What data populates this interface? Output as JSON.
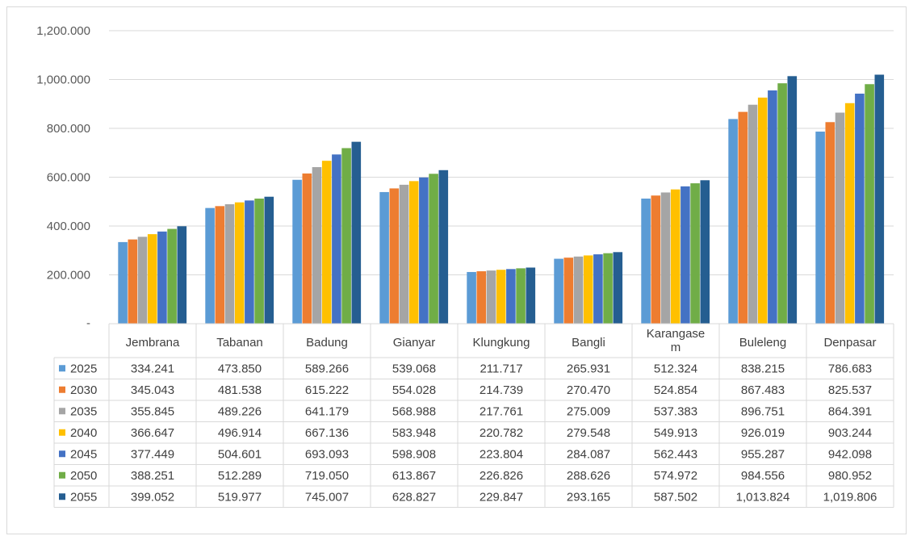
{
  "chart_data": {
    "type": "bar",
    "title": "",
    "xlabel": "",
    "ylabel": "",
    "ylim": [
      0,
      1200
    ],
    "y_ticks": [
      {
        "value": 0,
        "label": "-"
      },
      {
        "value": 200,
        "label": "200.000"
      },
      {
        "value": 400,
        "label": "400.000"
      },
      {
        "value": 600,
        "label": "600.000"
      },
      {
        "value": 800,
        "label": "800.000"
      },
      {
        "value": 1000,
        "label": "1,000.000"
      },
      {
        "value": 1200,
        "label": "1,200.000"
      }
    ],
    "grid": true,
    "legend": "data-table-left",
    "categories": [
      "Jembrana",
      "Tabanan",
      "Badung",
      "Gianyar",
      "Klungkung",
      "Bangli",
      "Karangasem",
      "Buleleng",
      "Denpasar"
    ],
    "category_display": [
      [
        "Jembrana"
      ],
      [
        "Tabanan"
      ],
      [
        "Badung"
      ],
      [
        "Gianyar"
      ],
      [
        "Klungkung"
      ],
      [
        "Bangli"
      ],
      [
        "Karangase",
        "m"
      ],
      [
        "Buleleng"
      ],
      [
        "Denpasar"
      ]
    ],
    "series": [
      {
        "name": "2025",
        "color": "#5b9bd5",
        "values": [
          334.241,
          473.85,
          589.266,
          539.068,
          211.717,
          265.931,
          512.324,
          838.215,
          786.683
        ],
        "labels": [
          "334.241",
          "473.850",
          "589.266",
          "539.068",
          "211.717",
          "265.931",
          "512.324",
          "838.215",
          "786.683"
        ]
      },
      {
        "name": "2030",
        "color": "#ed7d31",
        "values": [
          345.043,
          481.538,
          615.222,
          554.028,
          214.739,
          270.47,
          524.854,
          867.483,
          825.537
        ],
        "labels": [
          "345.043",
          "481.538",
          "615.222",
          "554.028",
          "214.739",
          "270.470",
          "524.854",
          "867.483",
          "825.537"
        ]
      },
      {
        "name": "2035",
        "color": "#a5a5a5",
        "values": [
          355.845,
          489.226,
          641.179,
          568.988,
          217.761,
          275.009,
          537.383,
          896.751,
          864.391
        ],
        "labels": [
          "355.845",
          "489.226",
          "641.179",
          "568.988",
          "217.761",
          "275.009",
          "537.383",
          "896.751",
          "864.391"
        ]
      },
      {
        "name": "2040",
        "color": "#ffc000",
        "values": [
          366.647,
          496.914,
          667.136,
          583.948,
          220.782,
          279.548,
          549.913,
          926.019,
          903.244
        ],
        "labels": [
          "366.647",
          "496.914",
          "667.136",
          "583.948",
          "220.782",
          "279.548",
          "549.913",
          "926.019",
          "903.244"
        ]
      },
      {
        "name": "2045",
        "color": "#4472c4",
        "values": [
          377.449,
          504.601,
          693.093,
          598.908,
          223.804,
          284.087,
          562.443,
          955.287,
          942.098
        ],
        "labels": [
          "377.449",
          "504.601",
          "693.093",
          "598.908",
          "223.804",
          "284.087",
          "562.443",
          "955.287",
          "942.098"
        ]
      },
      {
        "name": "2050",
        "color": "#70ad47",
        "values": [
          388.251,
          512.289,
          719.05,
          613.867,
          226.826,
          288.626,
          574.972,
          984.556,
          980.952
        ],
        "labels": [
          "388.251",
          "512.289",
          "719.050",
          "613.867",
          "226.826",
          "288.626",
          "574.972",
          "984.556",
          "980.952"
        ]
      },
      {
        "name": "2055",
        "color": "#255e91",
        "values": [
          399.052,
          519.977,
          745.007,
          628.827,
          229.847,
          293.165,
          587.502,
          1013.824,
          1019.806
        ],
        "labels": [
          "399.052",
          "519.977",
          "745.007",
          "628.827",
          "229.847",
          "293.165",
          "587.502",
          "1,013.824",
          "1,019.806"
        ]
      }
    ]
  }
}
